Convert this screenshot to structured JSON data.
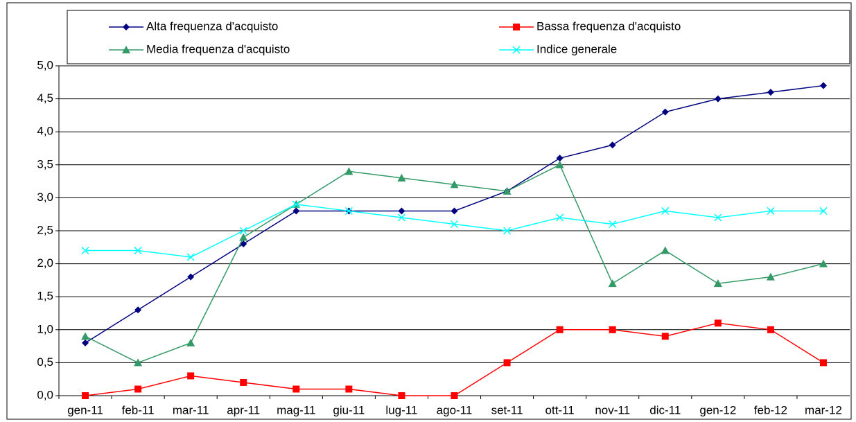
{
  "chart_data": {
    "type": "line",
    "categories": [
      "gen-11",
      "feb-11",
      "mar-11",
      "apr-11",
      "mag-11",
      "giu-11",
      "lug-11",
      "ago-11",
      "set-11",
      "ott-11",
      "nov-11",
      "dic-11",
      "gen-12",
      "feb-12",
      "mar-12"
    ],
    "series": [
      {
        "name": "Alta frequenza d'acquisto",
        "color": "#000080",
        "marker": "diamond",
        "values": [
          0.8,
          1.3,
          1.8,
          2.3,
          2.8,
          2.8,
          2.8,
          2.8,
          3.1,
          3.6,
          3.8,
          4.3,
          4.5,
          4.6,
          4.7
        ]
      },
      {
        "name": "Bassa frequenza d'acquisto",
        "color": "#ff0000",
        "marker": "square",
        "values": [
          0.0,
          0.1,
          0.3,
          0.2,
          0.1,
          0.1,
          0.0,
          0.0,
          0.5,
          1.0,
          1.0,
          0.9,
          1.1,
          1.0,
          0.5
        ]
      },
      {
        "name": "Media frequenza d'acquisto",
        "color": "#339966",
        "marker": "triangle",
        "values": [
          0.9,
          0.5,
          0.8,
          2.4,
          2.9,
          3.4,
          3.3,
          3.2,
          3.1,
          3.5,
          1.7,
          2.2,
          1.7,
          1.8,
          2.0
        ]
      },
      {
        "name": "Indice generale",
        "color": "#00ffff",
        "marker": "x",
        "values": [
          2.2,
          2.2,
          2.1,
          2.5,
          2.9,
          2.8,
          2.7,
          2.6,
          2.5,
          2.7,
          2.6,
          2.8,
          2.7,
          2.8,
          2.8
        ]
      }
    ],
    "ylim": [
      0,
      5
    ],
    "yticks": [
      {
        "value": 0,
        "label": "0,0"
      },
      {
        "value": 0.5,
        "label": "0,5"
      },
      {
        "value": 1,
        "label": "1,0"
      },
      {
        "value": 1.5,
        "label": "1,5"
      },
      {
        "value": 2,
        "label": "2,0"
      },
      {
        "value": 2.5,
        "label": "2,5"
      },
      {
        "value": 3,
        "label": "3,0"
      },
      {
        "value": 3.5,
        "label": "3,5"
      },
      {
        "value": 4,
        "label": "4,0"
      },
      {
        "value": 4.5,
        "label": "4,5"
      },
      {
        "value": 5,
        "label": "5,0"
      }
    ],
    "grid": true,
    "legend": "top"
  }
}
